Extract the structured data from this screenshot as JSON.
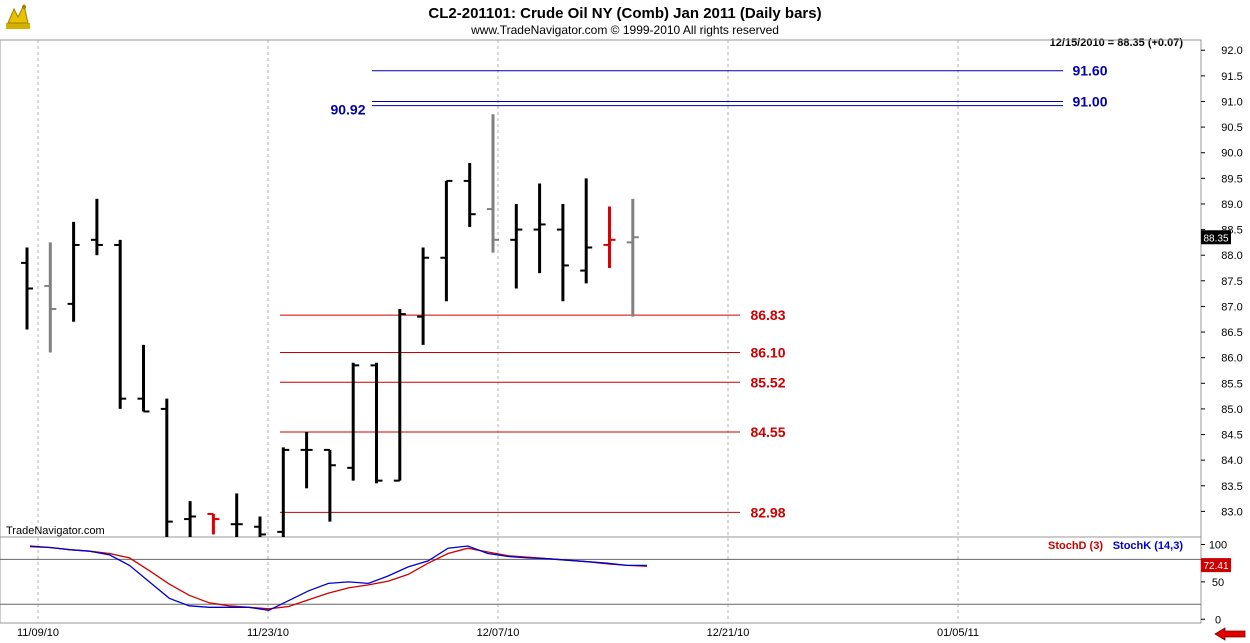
{
  "header": {
    "title": "CL2-201101:  Crude Oil NY (Comb) Jan 2011  (Daily bars)",
    "copyright": "www.TradeNavigator.com © 1999-2010 All rights reserved",
    "last_quote": "12/15/2010 = 88.35 (+0.07)",
    "watermark": "TradeNavigator.com"
  },
  "colors": {
    "resistance": "#0000aa",
    "support": "#cc0000",
    "bar_default": "#000000",
    "bar_gray": "#808080",
    "bar_red": "#dd0000",
    "stoch_d": "#cc0000",
    "stoch_k": "#0000cc",
    "logo": "#d4b000"
  },
  "chart_data": [
    {
      "type": "ohlc",
      "ylim": [
        82.5,
        92.2
      ],
      "yticks": [
        "83.0",
        "83.5",
        "84.0",
        "84.5",
        "85.0",
        "85.5",
        "86.0",
        "86.5",
        "87.0",
        "87.5",
        "88.0",
        "88.5",
        "89.0",
        "89.5",
        "90.0",
        "90.5",
        "91.0",
        "91.5",
        "92.0"
      ],
      "xticks": [
        "11/09/10",
        "11/23/10",
        "12/07/10",
        "12/21/10",
        "01/05/11"
      ],
      "last_price_label": "88.35",
      "bars": [
        {
          "o": 87.85,
          "h": 88.15,
          "l": 86.55,
          "c": 87.35,
          "color": "black"
        },
        {
          "o": 87.4,
          "h": 88.25,
          "l": 86.1,
          "c": 86.95,
          "color": "gray"
        },
        {
          "o": 87.05,
          "h": 88.65,
          "l": 86.7,
          "c": 88.2,
          "color": "black"
        },
        {
          "o": 88.3,
          "h": 89.1,
          "l": 88.0,
          "c": 88.2,
          "color": "black"
        },
        {
          "o": 88.2,
          "h": 88.3,
          "l": 85.0,
          "c": 85.2,
          "color": "black"
        },
        {
          "o": 85.2,
          "h": 86.25,
          "l": 84.95,
          "c": 84.95,
          "color": "black"
        },
        {
          "o": 85.0,
          "h": 85.2,
          "l": 82.5,
          "c": 82.8,
          "color": "black"
        },
        {
          "o": 82.85,
          "h": 83.2,
          "l": 82.5,
          "c": 82.9,
          "color": "black"
        },
        {
          "o": 82.95,
          "h": 82.95,
          "l": 82.55,
          "c": 82.85,
          "color": "red"
        },
        {
          "o": 82.75,
          "h": 83.35,
          "l": 82.5,
          "c": 82.75,
          "color": "black"
        },
        {
          "o": 82.7,
          "h": 82.9,
          "l": 82.5,
          "c": 82.55,
          "color": "black"
        },
        {
          "o": 82.6,
          "h": 84.25,
          "l": 82.5,
          "c": 84.2,
          "color": "black"
        },
        {
          "o": 84.2,
          "h": 84.55,
          "l": 83.45,
          "c": 84.2,
          "color": "black"
        },
        {
          "o": 84.2,
          "h": 84.2,
          "l": 82.8,
          "c": 83.9,
          "color": "black"
        },
        {
          "o": 83.85,
          "h": 85.9,
          "l": 83.6,
          "c": 85.85,
          "color": "black"
        },
        {
          "o": 85.85,
          "h": 85.9,
          "l": 83.55,
          "c": 83.6,
          "color": "black"
        },
        {
          "o": 83.6,
          "h": 86.95,
          "l": 83.6,
          "c": 86.85,
          "color": "black"
        },
        {
          "o": 86.8,
          "h": 88.15,
          "l": 86.25,
          "c": 87.95,
          "color": "black"
        },
        {
          "o": 87.95,
          "h": 89.45,
          "l": 87.1,
          "c": 89.45,
          "color": "black"
        },
        {
          "o": 89.45,
          "h": 89.8,
          "l": 88.55,
          "c": 88.8,
          "color": "black"
        },
        {
          "o": 88.9,
          "h": 90.75,
          "l": 88.05,
          "c": 88.3,
          "color": "gray"
        },
        {
          "o": 88.3,
          "h": 89.0,
          "l": 87.35,
          "c": 88.5,
          "color": "black"
        },
        {
          "o": 88.5,
          "h": 89.4,
          "l": 87.65,
          "c": 88.6,
          "color": "black"
        },
        {
          "o": 88.5,
          "h": 89.0,
          "l": 87.1,
          "c": 87.8,
          "color": "black"
        },
        {
          "o": 87.7,
          "h": 89.5,
          "l": 87.45,
          "c": 88.15,
          "color": "black"
        },
        {
          "o": 88.2,
          "h": 88.95,
          "l": 87.75,
          "c": 88.3,
          "color": "red"
        },
        {
          "o": 88.25,
          "h": 89.1,
          "l": 86.8,
          "c": 88.35,
          "color": "gray"
        }
      ]
    },
    {
      "type": "line",
      "ylim": [
        -5,
        110
      ],
      "yticks": [
        "0",
        "50",
        "100"
      ],
      "last_value_label": "72.41",
      "series": [
        {
          "name": "StochD (3)",
          "values": [
            97,
            96,
            93,
            91,
            88,
            82,
            65,
            47,
            32,
            22,
            18,
            16,
            14,
            17,
            26,
            35,
            42,
            46,
            51,
            60,
            75,
            88,
            95,
            90,
            85,
            83,
            81,
            79,
            77,
            74,
            72,
            71
          ]
        },
        {
          "name": "StochK (14,3)",
          "values": [
            98,
            96,
            93,
            91,
            86,
            72,
            50,
            28,
            18,
            16,
            16,
            16,
            12,
            25,
            38,
            48,
            50,
            48,
            58,
            70,
            78,
            95,
            98,
            88,
            84,
            82,
            81,
            79,
            77,
            75,
            72,
            72
          ]
        }
      ]
    }
  ],
  "levels": {
    "resistance": [
      {
        "value": 91.6,
        "label": "91.60"
      },
      {
        "value": 91.0,
        "label": "91.00"
      },
      {
        "value": 90.92,
        "label": "90.92"
      }
    ],
    "support": [
      {
        "value": 86.83,
        "label": "86.83"
      },
      {
        "value": 86.1,
        "label": "86.10"
      },
      {
        "value": 85.52,
        "label": "85.52"
      },
      {
        "value": 84.55,
        "label": "84.55"
      },
      {
        "value": 82.98,
        "label": "82.98"
      }
    ]
  },
  "stochastic_reference_lines": [
    80,
    20
  ],
  "footer": {
    "nav_arrow_icon": "left-arrow-icon"
  }
}
